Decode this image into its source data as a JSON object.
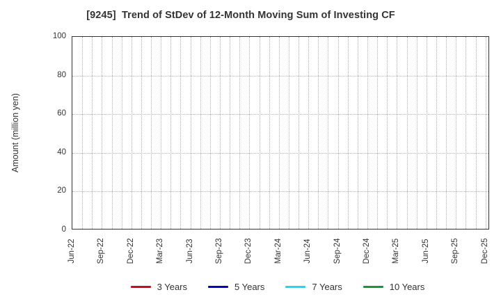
{
  "title": {
    "text": "[9245]  Trend of StDev of 12-Month Moving Sum of Investing CF"
  },
  "y_axis": {
    "label": "Amount (million yen)"
  },
  "chart_data": {
    "type": "line",
    "title": "[9245]  Trend of StDev of 12-Month Moving Sum of Investing CF",
    "xlabel": "",
    "ylabel": "Amount (million yen)",
    "ylim": [
      0,
      100
    ],
    "yticks": [
      0,
      20,
      40,
      60,
      80,
      100
    ],
    "categories": [
      "Jun-22",
      "Sep-22",
      "Dec-22",
      "Mar-23",
      "Jun-23",
      "Sep-23",
      "Dec-23",
      "Mar-24",
      "Jun-24",
      "Sep-24",
      "Dec-24",
      "Mar-25",
      "Jun-25",
      "Sep-25",
      "Dec-25"
    ],
    "months_between_labeled_ticks": 3,
    "grid": "dotted",
    "legend_position": "bottom",
    "plot_is_empty": true,
    "series": [
      {
        "name": "3 Years",
        "color": "#e60012",
        "values": []
      },
      {
        "name": "5 Years",
        "color": "#0000e0",
        "values": []
      },
      {
        "name": "7 Years",
        "color": "#00e5ff",
        "values": []
      },
      {
        "name": "10 Years",
        "color": "#0f9d2f",
        "values": []
      }
    ]
  },
  "colors": {
    "frame": "#333333",
    "grid": "#b0b0b0",
    "text": "#333333",
    "background": "#ffffff"
  }
}
